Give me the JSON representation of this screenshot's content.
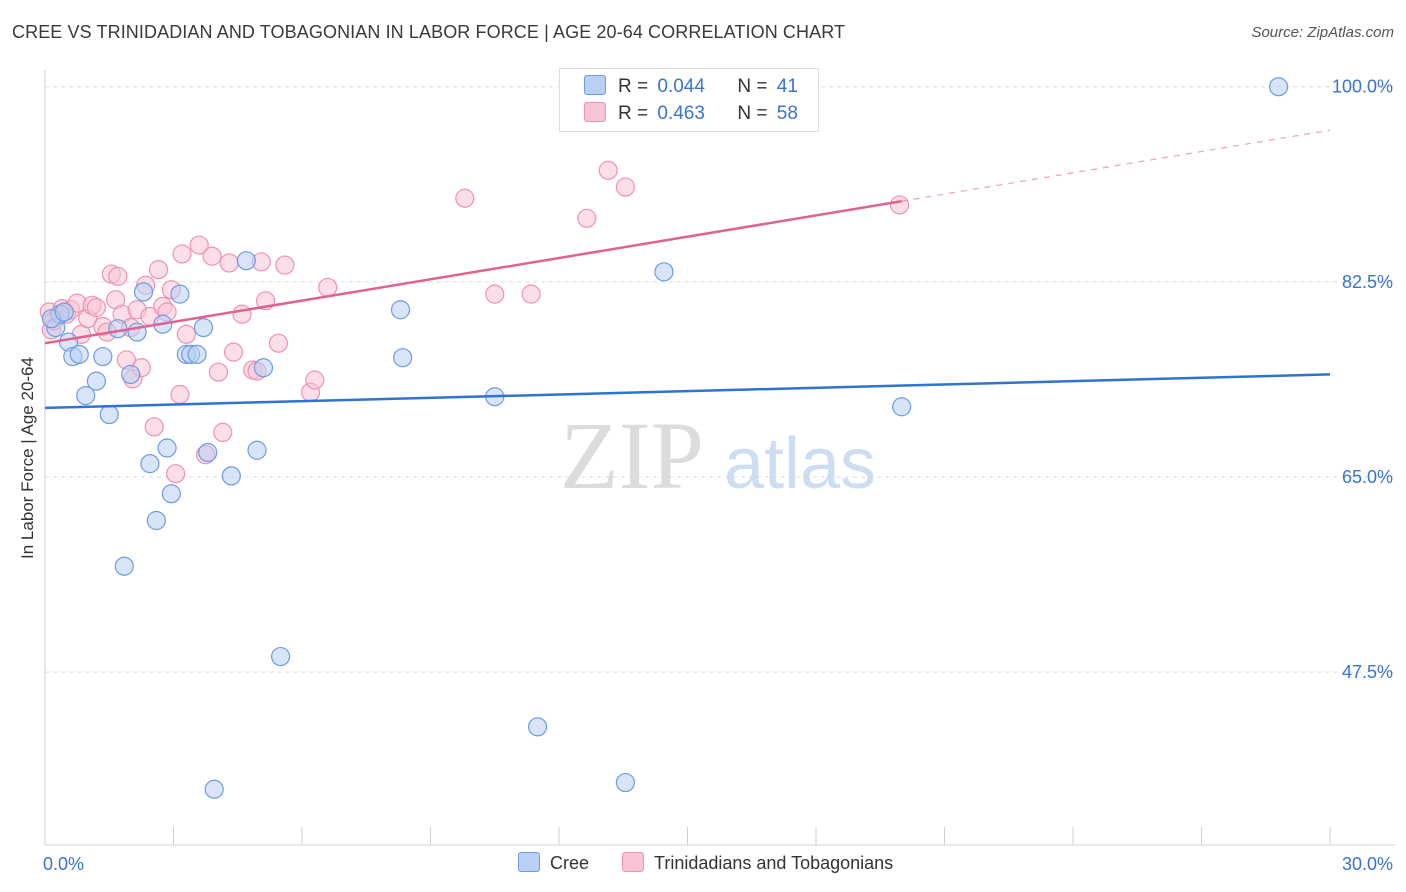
{
  "header": {
    "title": "CREE VS TRINIDADIAN AND TOBAGONIAN IN LABOR FORCE | AGE 20-64 CORRELATION CHART",
    "source": "Source: ZipAtlas.com"
  },
  "watermark": {
    "zip": "ZIP",
    "atlas": "atlas"
  },
  "legend": {
    "r_label": "R =",
    "n_label": "N =",
    "rows": [
      {
        "r": "0.044",
        "n": "41"
      },
      {
        "r": "0.463",
        "n": "58"
      }
    ]
  },
  "colors": {
    "cree_fill": "#b8d0f3",
    "cree_stroke": "#6f9be0",
    "cree_line": "#2f74d0",
    "tt_fill": "#f8c3d4",
    "tt_stroke": "#ee93b1",
    "tt_line": "#e0628f",
    "axis_label": "#3a73d0",
    "grid": "#dddddd"
  },
  "chart_data": {
    "type": "scatter",
    "title": "CREE VS TRINIDADIAN AND TOBAGONIAN IN LABOR FORCE | AGE 20-64 CORRELATION CHART",
    "xlabel": "",
    "ylabel": "In Labor Force | Age 20-64",
    "xlim": [
      0,
      30
    ],
    "ylim": [
      32,
      101.5
    ],
    "x_tick_labels": [
      {
        "value": 0,
        "label": "0.0%"
      },
      {
        "value": 30,
        "label": "30.0%"
      }
    ],
    "y_tick_labels": [
      {
        "value": 100,
        "label": "100.0%"
      },
      {
        "value": 82.5,
        "label": "82.5%"
      },
      {
        "value": 65,
        "label": "65.0%"
      },
      {
        "value": 47.5,
        "label": "47.5%"
      }
    ],
    "grid": true,
    "legend_position": "top-center",
    "series": [
      {
        "name": "Cree",
        "r": 0.044,
        "n": 41,
        "trend": {
          "x0": 0,
          "y0": 71.2,
          "x1": 30,
          "y1": 74.2,
          "dashed_from": null
        },
        "points": [
          [
            0.25,
            78.4
          ],
          [
            0.35,
            79.6
          ],
          [
            0.55,
            77.1
          ],
          [
            0.65,
            75.8
          ],
          [
            0.8,
            76.0
          ],
          [
            0.95,
            72.3
          ],
          [
            1.2,
            73.6
          ],
          [
            1.35,
            75.8
          ],
          [
            1.5,
            70.6
          ],
          [
            1.7,
            78.3
          ],
          [
            1.85,
            57.0
          ],
          [
            2.0,
            74.2
          ],
          [
            2.15,
            78.0
          ],
          [
            2.3,
            81.6
          ],
          [
            2.45,
            66.2
          ],
          [
            2.6,
            61.1
          ],
          [
            2.75,
            78.7
          ],
          [
            2.85,
            67.6
          ],
          [
            2.95,
            63.5
          ],
          [
            3.15,
            81.4
          ],
          [
            3.3,
            76.0
          ],
          [
            3.4,
            76.0
          ],
          [
            3.55,
            76.0
          ],
          [
            3.7,
            78.4
          ],
          [
            3.8,
            67.2
          ],
          [
            3.95,
            37.0
          ],
          [
            4.35,
            65.1
          ],
          [
            4.7,
            84.4
          ],
          [
            4.95,
            67.4
          ],
          [
            5.1,
            74.8
          ],
          [
            5.5,
            48.9
          ],
          [
            8.3,
            80.0
          ],
          [
            8.35,
            75.7
          ],
          [
            10.5,
            72.2
          ],
          [
            11.5,
            42.6
          ],
          [
            13.55,
            37.6
          ],
          [
            14.45,
            83.4
          ],
          [
            20.0,
            71.3
          ],
          [
            28.8,
            100.0
          ],
          [
            0.15,
            79.2
          ],
          [
            0.45,
            79.8
          ]
        ]
      },
      {
        "name": "Trinidadians and Tobagonians",
        "r": 0.463,
        "n": 58,
        "trend": {
          "x0": 0,
          "y0": 77.0,
          "x1": 30,
          "y1": 96.1,
          "dashed_from": 20.0
        },
        "points": [
          [
            0.1,
            79.8
          ],
          [
            0.15,
            78.2
          ],
          [
            0.3,
            79.4
          ],
          [
            0.4,
            80.1
          ],
          [
            0.5,
            79.6
          ],
          [
            0.6,
            80.0
          ],
          [
            0.75,
            80.6
          ],
          [
            0.85,
            77.8
          ],
          [
            1.0,
            79.2
          ],
          [
            1.1,
            80.4
          ],
          [
            1.2,
            80.2
          ],
          [
            1.35,
            78.5
          ],
          [
            1.45,
            78.0
          ],
          [
            1.55,
            83.2
          ],
          [
            1.65,
            80.9
          ],
          [
            1.7,
            83.0
          ],
          [
            1.8,
            79.6
          ],
          [
            1.9,
            75.5
          ],
          [
            2.0,
            78.4
          ],
          [
            2.05,
            73.8
          ],
          [
            2.15,
            80.0
          ],
          [
            2.25,
            74.8
          ],
          [
            2.35,
            82.2
          ],
          [
            2.45,
            79.4
          ],
          [
            2.55,
            69.5
          ],
          [
            2.65,
            83.6
          ],
          [
            2.75,
            80.3
          ],
          [
            2.85,
            79.8
          ],
          [
            2.95,
            81.8
          ],
          [
            3.05,
            65.3
          ],
          [
            3.15,
            72.4
          ],
          [
            3.2,
            85.0
          ],
          [
            3.3,
            77.8
          ],
          [
            3.6,
            85.8
          ],
          [
            3.75,
            67.0
          ],
          [
            3.9,
            84.8
          ],
          [
            4.05,
            74.4
          ],
          [
            4.15,
            69.0
          ],
          [
            4.3,
            84.2
          ],
          [
            4.4,
            76.2
          ],
          [
            4.6,
            79.6
          ],
          [
            4.85,
            74.6
          ],
          [
            4.95,
            74.5
          ],
          [
            5.05,
            84.3
          ],
          [
            5.15,
            80.8
          ],
          [
            5.45,
            77.0
          ],
          [
            5.6,
            84.0
          ],
          [
            6.2,
            72.6
          ],
          [
            6.3,
            73.7
          ],
          [
            6.6,
            82.0
          ],
          [
            9.8,
            90.0
          ],
          [
            10.5,
            81.4
          ],
          [
            11.35,
            81.4
          ],
          [
            12.65,
            88.2
          ],
          [
            13.15,
            92.5
          ],
          [
            13.55,
            91.0
          ],
          [
            19.95,
            89.4
          ],
          [
            0.2,
            79.0
          ]
        ]
      }
    ]
  },
  "bottom_legend": {
    "items": [
      "Cree",
      "Trinidadians and Tobagonians"
    ]
  }
}
